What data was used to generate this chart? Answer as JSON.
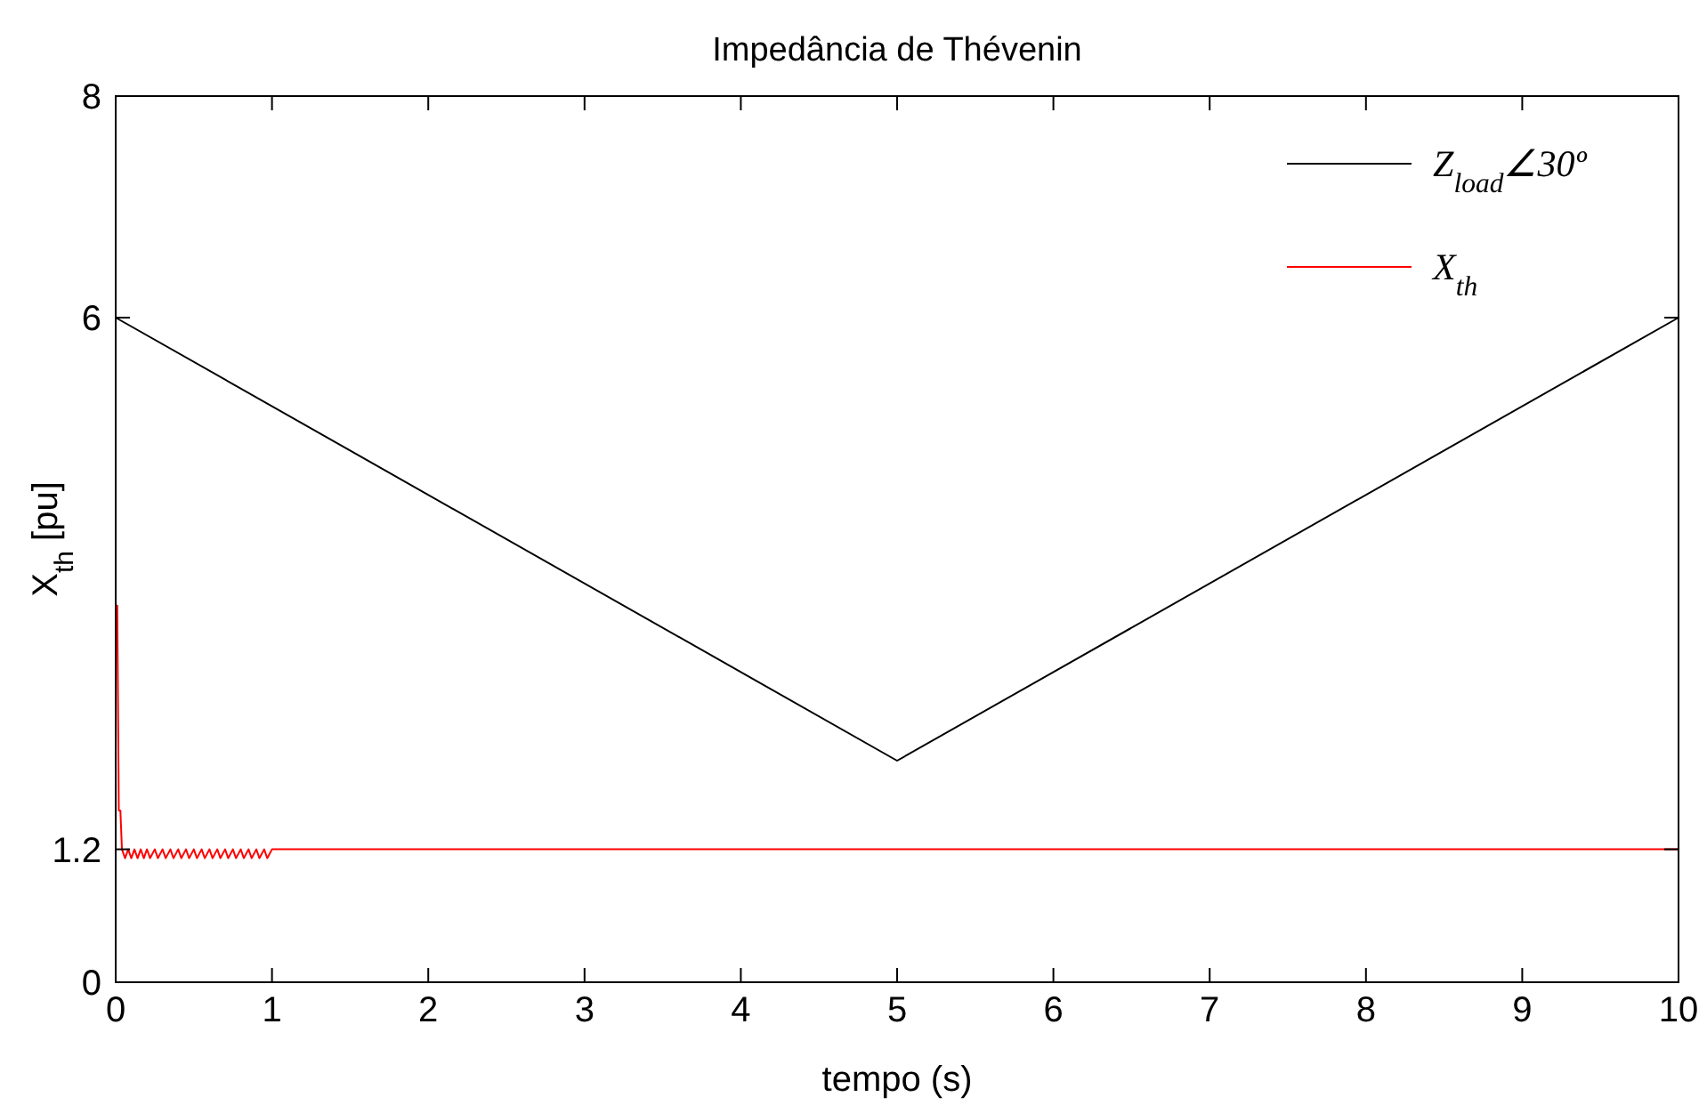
{
  "chart_data": {
    "type": "line",
    "title": "Impedância de Thévenin",
    "xlabel": "tempo (s)",
    "ylabel": "X$_{th}$ [pu]",
    "xlim": [
      0,
      10
    ],
    "xticks": [
      0,
      1,
      2,
      3,
      4,
      5,
      6,
      7,
      8,
      9,
      10
    ],
    "ylim": [
      0,
      8
    ],
    "yticks": [
      0,
      1.2,
      6,
      8
    ],
    "grid": false,
    "legend": "top right",
    "marker": "none",
    "line_style": "solid",
    "series": [
      {
        "name": "Z$_{load}$∠30º",
        "color": "#000000",
        "x": [
          0,
          5,
          10
        ],
        "values": [
          6,
          2,
          6
        ]
      },
      {
        "name": "X$_{th}$",
        "color": "#ff0000",
        "x": [
          0,
          0.01,
          0.02,
          0.03,
          0.04,
          0.06,
          0.08,
          0.1,
          0.12,
          0.14,
          0.16,
          0.18,
          0.2,
          0.22,
          0.25,
          0.27,
          0.3,
          0.32,
          0.35,
          0.37,
          0.4,
          0.42,
          0.45,
          0.47,
          0.5,
          0.52,
          0.55,
          0.57,
          0.6,
          0.62,
          0.65,
          0.67,
          0.7,
          0.72,
          0.75,
          0.77,
          0.8,
          0.82,
          0.85,
          0.87,
          0.9,
          0.92,
          0.95,
          0.97,
          1.0,
          10
        ],
        "values": [
          3.4,
          3.4,
          1.55,
          1.55,
          1.2,
          1.12,
          1.2,
          1.12,
          1.2,
          1.12,
          1.2,
          1.12,
          1.2,
          1.12,
          1.2,
          1.12,
          1.2,
          1.12,
          1.2,
          1.12,
          1.2,
          1.12,
          1.2,
          1.12,
          1.2,
          1.12,
          1.2,
          1.12,
          1.2,
          1.12,
          1.2,
          1.12,
          1.2,
          1.12,
          1.2,
          1.12,
          1.2,
          1.12,
          1.2,
          1.12,
          1.2,
          1.12,
          1.2,
          1.12,
          1.2,
          1.2
        ]
      }
    ]
  }
}
